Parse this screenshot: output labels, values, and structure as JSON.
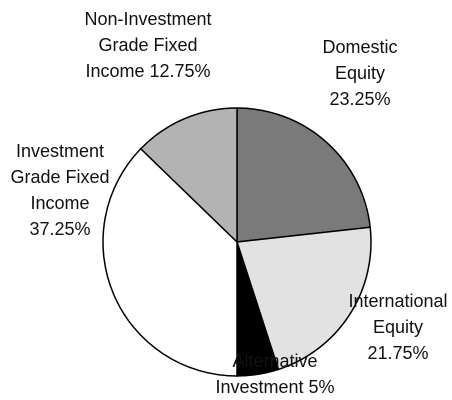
{
  "chart_data": {
    "type": "pie",
    "categories": [
      "Domestic Equity",
      "International Equity",
      "Alternative Investment",
      "Investment Grade Fixed Income",
      "Non-Investment Grade Fixed Income"
    ],
    "values": [
      23.25,
      21.75,
      5,
      37.25,
      12.75
    ],
    "value_labels": [
      "23.25%",
      "21.75%",
      "5%",
      "37.25%",
      "12.75%"
    ],
    "colors": [
      "#7a7a7a",
      "#e2e2e2",
      "#000000",
      "#ffffff",
      "#b3b3b3"
    ]
  }
}
